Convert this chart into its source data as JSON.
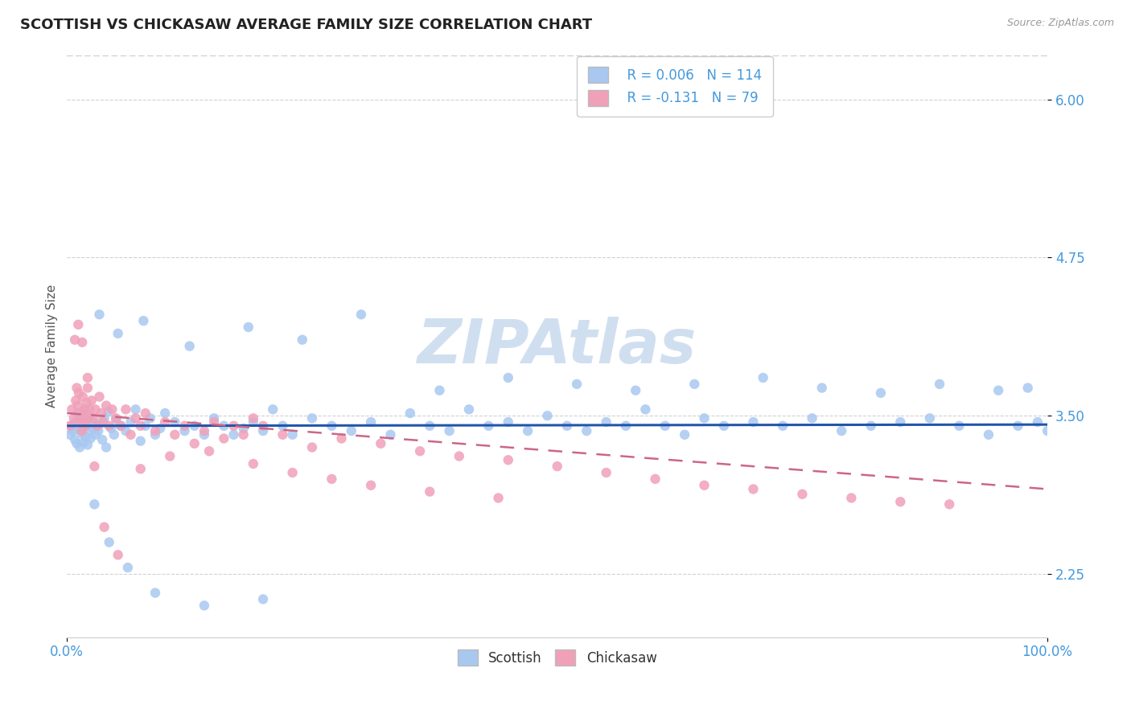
{
  "title": "SCOTTISH VS CHICKASAW AVERAGE FAMILY SIZE CORRELATION CHART",
  "source_text": "Source: ZipAtlas.com",
  "ylabel": "Average Family Size",
  "xlim": [
    0.0,
    100.0
  ],
  "ylim": [
    1.75,
    6.35
  ],
  "yticks": [
    2.25,
    3.5,
    4.75,
    6.0
  ],
  "scottish_R": 0.006,
  "scottish_N": 114,
  "chickasaw_R": -0.131,
  "chickasaw_N": 79,
  "scottish_color": "#A8C8F0",
  "chickasaw_color": "#F0A0B8",
  "trend_scottish_color": "#2255AA",
  "trend_chickasaw_color": "#CC6688",
  "background_color": "#FFFFFF",
  "title_color": "#222222",
  "axis_label_color": "#4499DD",
  "watermark_color": "#D0DFF0",
  "scottish_x": [
    0.3,
    0.5,
    0.6,
    0.8,
    0.9,
    1.0,
    1.1,
    1.2,
    1.3,
    1.4,
    1.5,
    1.6,
    1.7,
    1.8,
    1.9,
    2.0,
    2.1,
    2.2,
    2.3,
    2.4,
    2.5,
    2.7,
    2.9,
    3.0,
    3.2,
    3.4,
    3.6,
    3.8,
    4.0,
    4.2,
    4.5,
    4.8,
    5.0,
    5.5,
    6.0,
    6.5,
    7.0,
    7.5,
    8.0,
    8.5,
    9.0,
    9.5,
    10.0,
    11.0,
    12.0,
    13.0,
    14.0,
    15.0,
    16.0,
    17.0,
    18.0,
    19.0,
    20.0,
    21.0,
    22.0,
    23.0,
    25.0,
    27.0,
    29.0,
    31.0,
    33.0,
    35.0,
    37.0,
    39.0,
    41.0,
    43.0,
    45.0,
    47.0,
    49.0,
    51.0,
    53.0,
    55.0,
    57.0,
    59.0,
    61.0,
    63.0,
    65.0,
    67.0,
    70.0,
    73.0,
    76.0,
    79.0,
    82.0,
    85.0,
    88.0,
    91.0,
    94.0,
    97.0,
    99.0,
    100.0,
    3.3,
    5.2,
    7.8,
    12.5,
    18.5,
    24.0,
    30.0,
    38.0,
    45.0,
    52.0,
    58.0,
    64.0,
    71.0,
    77.0,
    83.0,
    89.0,
    95.0,
    98.0,
    2.8,
    4.3,
    6.2,
    9.0,
    14.0,
    20.0
  ],
  "scottish_y": [
    3.35,
    3.42,
    3.38,
    3.31,
    3.45,
    3.28,
    3.52,
    3.39,
    3.25,
    3.48,
    3.36,
    3.41,
    3.29,
    3.55,
    3.33,
    3.44,
    3.27,
    3.5,
    3.38,
    3.32,
    3.46,
    3.4,
    3.35,
    3.42,
    3.38,
    3.44,
    3.31,
    3.48,
    3.25,
    3.53,
    3.4,
    3.35,
    3.47,
    3.42,
    3.38,
    3.45,
    3.55,
    3.3,
    3.42,
    3.48,
    3.35,
    3.4,
    3.52,
    3.45,
    3.38,
    3.42,
    3.35,
    3.48,
    3.42,
    3.35,
    3.4,
    3.45,
    3.38,
    3.55,
    3.42,
    3.35,
    3.48,
    3.42,
    3.38,
    3.45,
    3.35,
    3.52,
    3.42,
    3.38,
    3.55,
    3.42,
    3.45,
    3.38,
    3.5,
    3.42,
    3.38,
    3.45,
    3.42,
    3.55,
    3.42,
    3.35,
    3.48,
    3.42,
    3.45,
    3.42,
    3.48,
    3.38,
    3.42,
    3.45,
    3.48,
    3.42,
    3.35,
    3.42,
    3.45,
    3.38,
    4.3,
    4.15,
    4.25,
    4.05,
    4.2,
    4.1,
    4.3,
    3.7,
    3.8,
    3.75,
    3.7,
    3.75,
    3.8,
    3.72,
    3.68,
    3.75,
    3.7,
    3.72,
    2.8,
    2.5,
    2.3,
    2.1,
    2.0,
    2.05
  ],
  "chickasaw_x": [
    0.3,
    0.5,
    0.7,
    0.9,
    1.0,
    1.1,
    1.2,
    1.3,
    1.4,
    1.5,
    1.6,
    1.7,
    1.8,
    1.9,
    2.0,
    2.1,
    2.2,
    2.3,
    2.5,
    2.7,
    2.9,
    3.1,
    3.3,
    3.5,
    3.7,
    4.0,
    4.3,
    4.6,
    5.0,
    5.5,
    6.0,
    6.5,
    7.0,
    7.5,
    8.0,
    9.0,
    10.0,
    11.0,
    12.0,
    13.0,
    14.0,
    15.0,
    16.0,
    17.0,
    18.0,
    19.0,
    20.0,
    22.0,
    25.0,
    28.0,
    32.0,
    36.0,
    40.0,
    45.0,
    50.0,
    55.0,
    60.0,
    65.0,
    70.0,
    75.0,
    80.0,
    85.0,
    90.0,
    0.8,
    1.15,
    1.55,
    2.1,
    2.8,
    3.8,
    5.2,
    7.5,
    10.5,
    14.5,
    19.0,
    23.0,
    27.0,
    31.0,
    37.0,
    44.0
  ],
  "chickasaw_y": [
    3.42,
    3.55,
    3.48,
    3.62,
    3.72,
    3.58,
    3.68,
    3.45,
    3.52,
    3.38,
    3.65,
    3.48,
    3.55,
    3.42,
    3.6,
    3.72,
    3.48,
    3.55,
    3.62,
    3.48,
    3.55,
    3.42,
    3.65,
    3.52,
    3.45,
    3.58,
    3.42,
    3.55,
    3.48,
    3.42,
    3.55,
    3.35,
    3.48,
    3.42,
    3.52,
    3.38,
    3.45,
    3.35,
    3.42,
    3.28,
    3.38,
    3.45,
    3.32,
    3.42,
    3.35,
    3.48,
    3.42,
    3.35,
    3.25,
    3.32,
    3.28,
    3.22,
    3.18,
    3.15,
    3.1,
    3.05,
    3.0,
    2.95,
    2.92,
    2.88,
    2.85,
    2.82,
    2.8,
    4.1,
    4.22,
    4.08,
    3.8,
    3.1,
    2.62,
    2.4,
    3.08,
    3.18,
    3.22,
    3.12,
    3.05,
    3.0,
    2.95,
    2.9,
    2.85
  ],
  "scottish_trend_x0": 0.0,
  "scottish_trend_y0": 3.42,
  "scottish_trend_x1": 100.0,
  "scottish_trend_y1": 3.43,
  "chickasaw_trend_x0": 0.0,
  "chickasaw_trend_y0": 3.52,
  "chickasaw_trend_x1": 100.0,
  "chickasaw_trend_y1": 2.92
}
